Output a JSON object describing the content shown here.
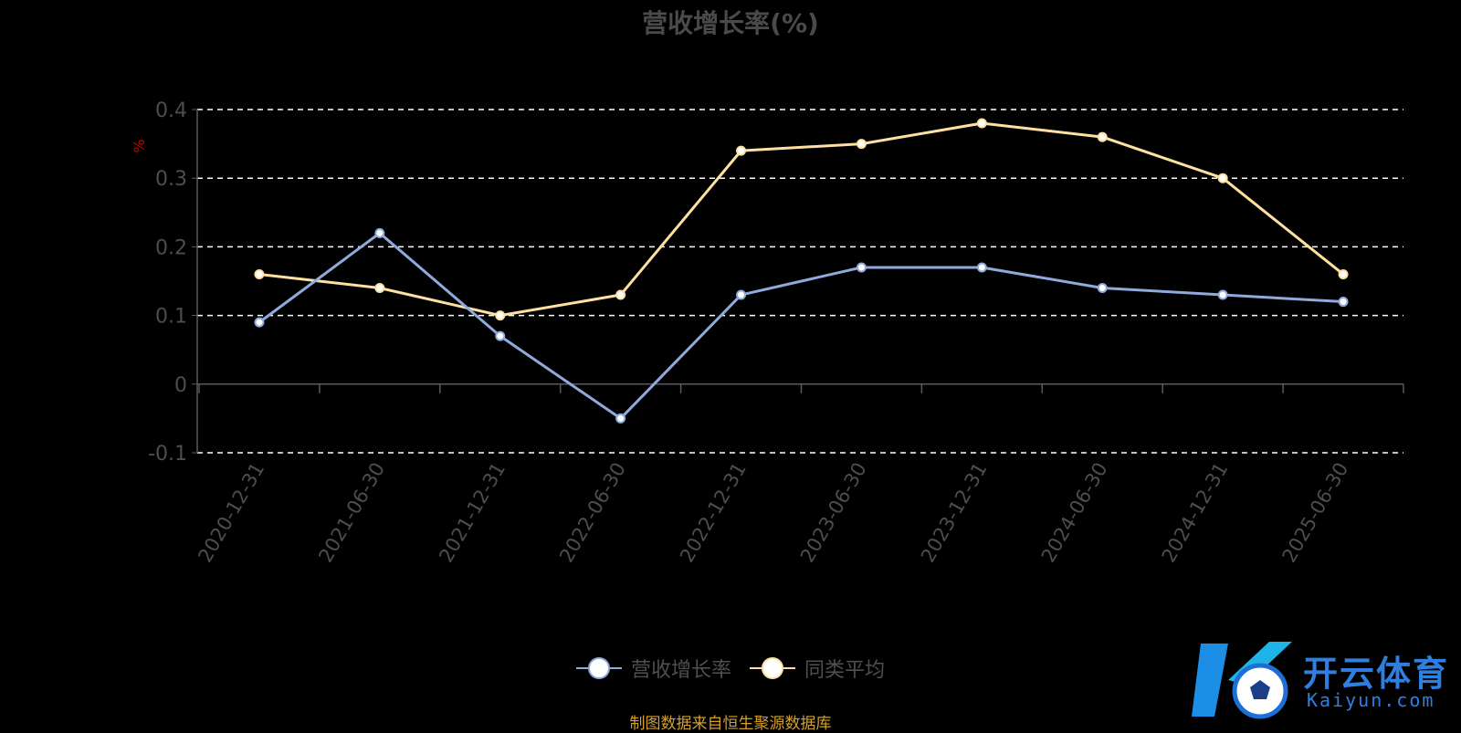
{
  "colors": {
    "background": "#000000",
    "series_self": "#8faadc",
    "series_avg": "#ffe0a0",
    "y_unit": "#cc0000",
    "source_text": "#d4a02a",
    "watermark": "#2f7fe0"
  },
  "source_note": "制图数据来自恒生聚源数据库",
  "watermark": {
    "cn": "开云体育",
    "en": "Kaiyun.com",
    "icon": "soccer-ball-logo-icon"
  },
  "chart_data": {
    "type": "line",
    "title": "营收增长率(%)",
    "ylabel": "%",
    "xlabel": "",
    "categories": [
      "2020-12-31",
      "2021-06-30",
      "2021-12-31",
      "2022-06-30",
      "2022-12-31",
      "2023-06-30",
      "2023-12-31",
      "2024-06-30",
      "2024-12-31",
      "2025-06-30"
    ],
    "series": [
      {
        "name": "营收增长率",
        "values": [
          0.09,
          0.22,
          0.07,
          -0.05,
          0.13,
          0.17,
          0.17,
          0.14,
          0.13,
          0.12
        ]
      },
      {
        "name": "同类平均",
        "values": [
          0.16,
          0.14,
          0.1,
          0.13,
          0.34,
          0.35,
          0.38,
          0.36,
          0.3,
          0.16
        ]
      }
    ],
    "ylim": [
      -0.1,
      0.4
    ],
    "yticks": [
      "0.4",
      "0.3",
      "0.2",
      "0.1",
      "0",
      "-0.1"
    ],
    "grid": true,
    "legend_position": "bottom-center"
  }
}
